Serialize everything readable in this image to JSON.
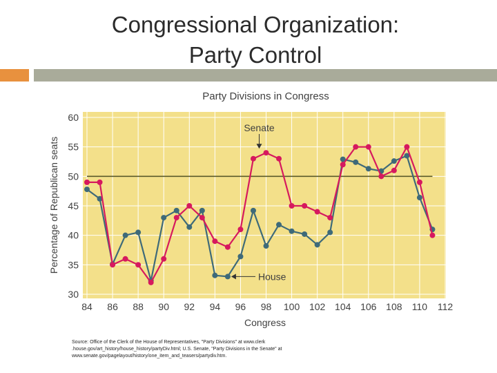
{
  "slide": {
    "title_line1": "Congressional Organization:",
    "title_line2": "Party Control",
    "source": "Source: Office of the Clerk of the House of Representatives, \"Party Divisions\" at www.clerk .house.gov/art_history/house_history/partyDiv.html; U.S. Senate, \"Party Divisions in the Senate\" at www.senate.gov/pagelayout/history/one_item_and_teasers/partydiv.htm."
  },
  "colors": {
    "senate": "#d6195e",
    "house": "#3e6a79",
    "plot_bg": "#f3e08a",
    "gridline": "#ffffff",
    "majority_line": "#5a5a2a",
    "accent": "#e8913e",
    "rule": "#a9ab9a",
    "axis_text": "#404040"
  },
  "chart_data": {
    "type": "line",
    "title": "Party Divisions in Congress",
    "xlabel": "Congress",
    "ylabel": "Percentage of Republican seats",
    "xlim": [
      84,
      112
    ],
    "ylim": [
      30,
      60
    ],
    "xticks": [
      84,
      86,
      88,
      90,
      92,
      94,
      96,
      98,
      100,
      102,
      104,
      106,
      108,
      110,
      112
    ],
    "yticks": [
      30,
      35,
      40,
      45,
      50,
      55,
      60
    ],
    "reference_line": 50,
    "series": [
      {
        "name": "Senate",
        "x": [
          84,
          85,
          86,
          87,
          88,
          89,
          90,
          91,
          92,
          93,
          94,
          95,
          96,
          97,
          98,
          99,
          100,
          101,
          102,
          103,
          104,
          105,
          106,
          107,
          108,
          109,
          110,
          111
        ],
        "values": [
          49,
          49,
          35,
          36,
          35,
          32,
          36,
          43,
          45,
          43,
          39,
          38,
          41,
          53,
          54,
          53,
          45,
          45,
          44,
          43,
          52,
          55,
          55,
          50,
          51,
          55,
          49,
          40
        ]
      },
      {
        "name": "House",
        "x": [
          84,
          85,
          86,
          87,
          88,
          89,
          90,
          91,
          92,
          93,
          94,
          95,
          96,
          97,
          98,
          99,
          100,
          101,
          102,
          103,
          104,
          105,
          106,
          107,
          108,
          109,
          110,
          111
        ],
        "values": [
          47.8,
          46.2,
          35.1,
          40,
          40.5,
          32.3,
          43,
          44.2,
          41.4,
          44.2,
          33.2,
          33,
          36.4,
          44.2,
          38.2,
          41.8,
          40.7,
          40.2,
          38.4,
          40.5,
          52.9,
          52.4,
          51.3,
          50.9,
          52.6,
          53.5,
          46.4,
          41
        ]
      }
    ],
    "annotations": [
      {
        "text": "Senate",
        "points_to_series": "Senate",
        "at_x": 98
      },
      {
        "text": "House",
        "points_to_series": "House",
        "at_x": 95
      }
    ]
  }
}
